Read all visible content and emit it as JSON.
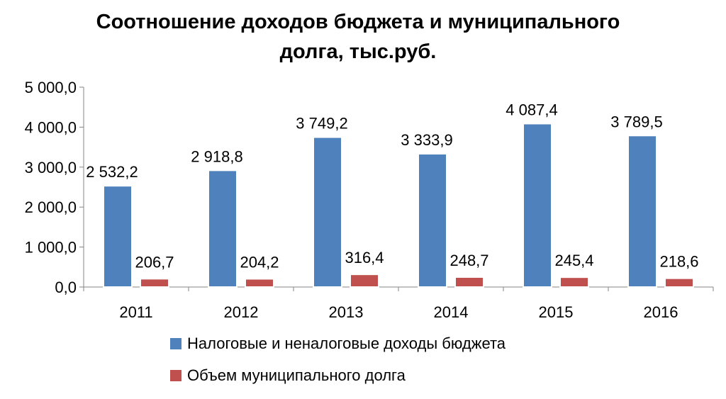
{
  "chart_data": {
    "type": "bar",
    "title": "Соотношение доходов бюджета и муниципального долга, тыс.руб.",
    "title_lines": [
      "Соотношение доходов бюджета и муниципального",
      "долга, тыс.руб."
    ],
    "categories": [
      "2011",
      "2012",
      "2013",
      "2014",
      "2015",
      "2016"
    ],
    "series": [
      {
        "name": "Налоговые и неналоговые доходы бюджета",
        "color": "#4F81BD",
        "values": [
          2532.2,
          2918.8,
          3749.2,
          3333.9,
          4087.4,
          3789.5
        ],
        "labels": [
          "2 532,2",
          "2 918,8",
          "3 749,2",
          "3 333,9",
          "4 087,4",
          "3 789,5"
        ]
      },
      {
        "name": "Объем муниципального долга",
        "color": "#C0504D",
        "values": [
          206.7,
          204.2,
          316.4,
          248.7,
          245.4,
          218.6
        ],
        "labels": [
          "206,7",
          "204,2",
          "316,4",
          "248,7",
          "245,4",
          "218,6"
        ]
      }
    ],
    "ylim": [
      0,
      5000
    ],
    "yticks": [
      0,
      1000,
      2000,
      3000,
      4000,
      5000
    ],
    "ytick_labels": [
      "0,0",
      "1 000,0",
      "2 000,0",
      "3 000,0",
      "4 000,0",
      "5 000,0"
    ],
    "xlabel": "",
    "ylabel": "",
    "grid": false,
    "legend_position": "bottom"
  }
}
